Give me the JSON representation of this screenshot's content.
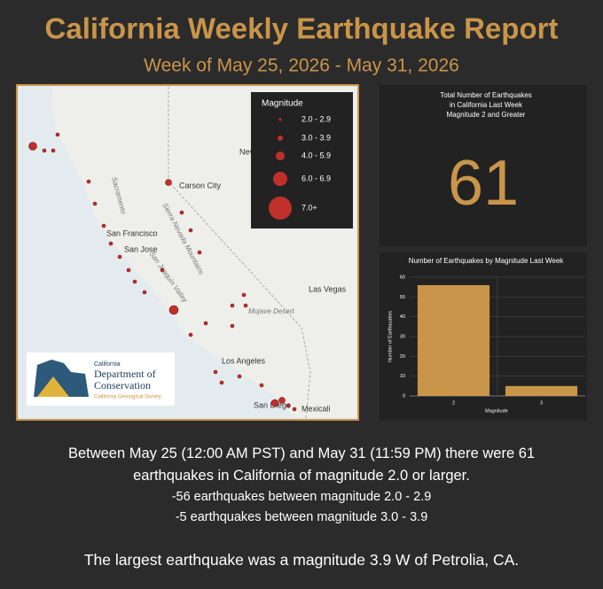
{
  "header": {
    "title": "California Weekly Earthquake Report",
    "subtitle": "Week of May 25, 2026 - May 31, 2026"
  },
  "map": {
    "legend": {
      "title": "Magnitude",
      "items": [
        "2.0 - 2.9",
        "3.0 - 3.9",
        "4.0 - 5.9",
        "6.0 - 6.9",
        "7.0+"
      ]
    },
    "labels": [
      "Carson City",
      "Sacramento",
      "San Francisco",
      "San Jose",
      "Sierra Nevada Mountains",
      "San Joaquin Valley",
      "Nevada",
      "Las Vegas",
      "Mojave Desert",
      "Los Angeles",
      "San Diego",
      "Mexicali"
    ],
    "logo": {
      "top": "California",
      "line1": "Department of",
      "line2": "Conservation",
      "sub": "California Geological Survey"
    }
  },
  "total": {
    "heading": [
      "Total Number of Earthquakes",
      "in California Last Week",
      "Magnitude 2 and Greater"
    ],
    "value": 61
  },
  "chart_data": {
    "type": "bar",
    "title": "Number of Earthquakes by Magnitude Last Week",
    "x_label": "Magnitude",
    "y_label": "Number of Earthquakes",
    "categories": [
      "2",
      "3"
    ],
    "values": [
      56,
      5
    ],
    "color": "#c9954a",
    "ylim": [
      0,
      60
    ],
    "yticks": [
      0,
      10,
      20,
      30,
      40,
      50,
      60
    ],
    "grid": true
  },
  "summary": {
    "paragraph": "Between May 25 (12:00 AM PST) and May 31 (11:59 PM) there were 61 earthquakes in California of magnitude 2.0 or larger.",
    "details": [
      "-56 earthquakes between magnitude 2.0 - 2.9",
      "-5 earthquakes between magnitude 3.0 - 3.9"
    ],
    "largest": "The largest earthquake was a magnitude 3.9 W of Petrolia, CA."
  }
}
